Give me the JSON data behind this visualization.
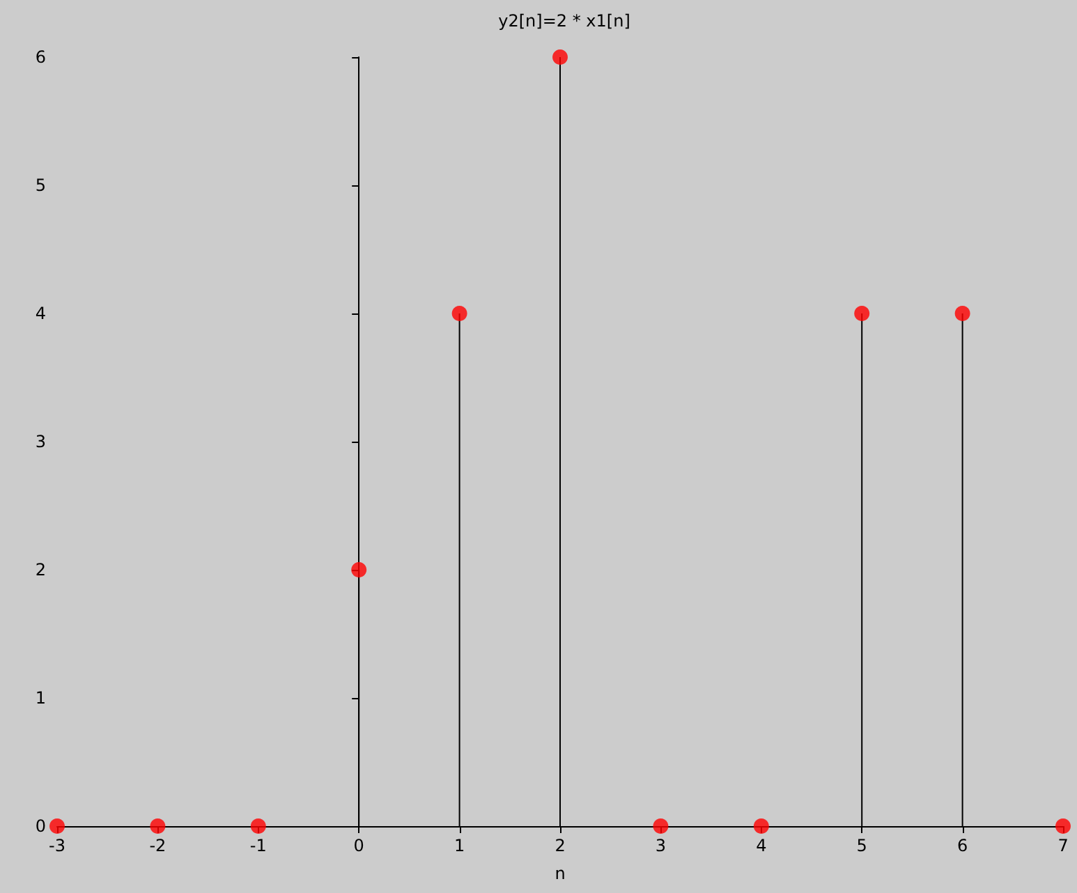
{
  "chart_data": {
    "type": "lollipop",
    "title": "y2[n]=2 * x1[n]",
    "xlabel": "n",
    "x": [
      -3,
      -2,
      -1,
      0,
      1,
      2,
      3,
      4,
      5,
      6,
      7
    ],
    "values": [
      0,
      0,
      0,
      2,
      4,
      6,
      0,
      0,
      4,
      4,
      0
    ],
    "color": "#ff0000",
    "marker": "circle",
    "xlim": [
      -3,
      7
    ],
    "xticks": [
      -3,
      -2,
      -1,
      0,
      1,
      2,
      3,
      4,
      5,
      6,
      7
    ],
    "ylim": [
      0,
      6
    ],
    "yticks": [
      0,
      1,
      2,
      3,
      4,
      5,
      6
    ]
  }
}
